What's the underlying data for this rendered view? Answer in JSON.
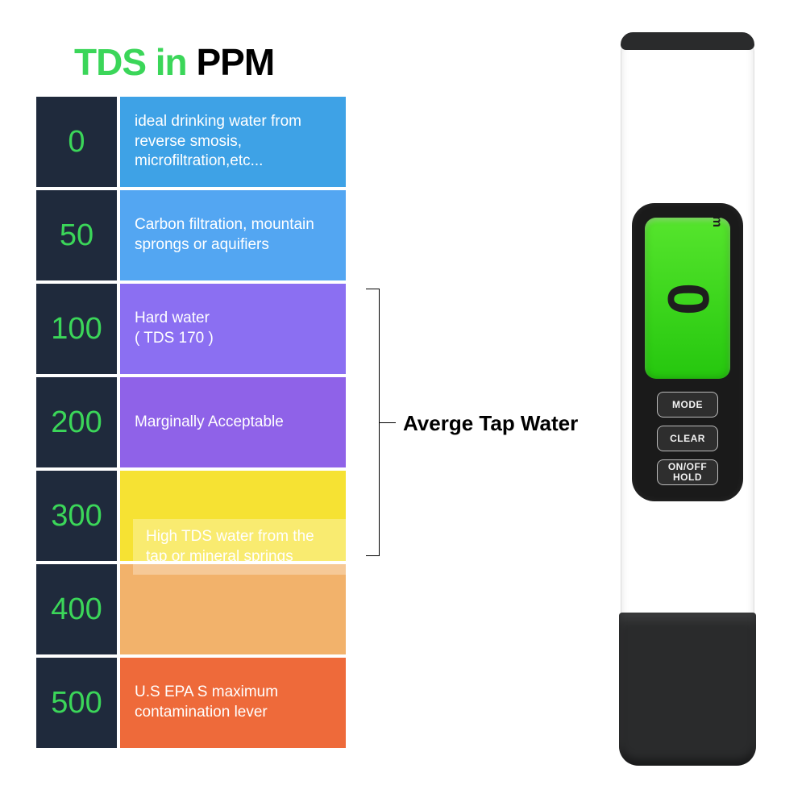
{
  "title": {
    "green": "TDS in",
    "black": "PPM"
  },
  "rows": [
    {
      "value": "0",
      "desc": "ideal drinking water from reverse smosis, microfiltration,etc...",
      "leftBg": "#1f2a3c",
      "rightBg": "#3ea2e6"
    },
    {
      "value": "50",
      "desc": "Carbon filtration, mountain sprongs or aquifiers",
      "leftBg": "#1f2a3c",
      "rightBg": "#53a6f2"
    },
    {
      "value": "100",
      "desc": "Hard water\n( TDS 170 )",
      "leftBg": "#1f2a3c",
      "rightBg": "#8b6ff2"
    },
    {
      "value": "200",
      "desc": "Marginally Acceptable",
      "leftBg": "#1f2a3c",
      "rightBg": "#8f62e8"
    },
    {
      "value": "300",
      "desc": "",
      "leftBg": "#1f2a3c",
      "rightBg": "#f6e233"
    },
    {
      "value": "400",
      "desc": "",
      "leftBg": "#1f2a3c",
      "rightBg": "#f2b26b"
    },
    {
      "value": "500",
      "desc": "U.S EPA S maximum contamination lever",
      "leftBg": "#1f2a3c",
      "rightBg": "#ee6a3a"
    }
  ],
  "overlapLabel": "High TDS water from the tap or mineral springs",
  "bracketLabel": "Averge Tap Water",
  "device": {
    "reading": "0",
    "unit": "ppm",
    "buttons": [
      "MODE",
      "CLEAR",
      "ON/OFF\nHOLD"
    ]
  },
  "colors": {
    "accentGreen": "#3bd659",
    "screenTop": "#56e52d",
    "screenBottom": "#25c70e",
    "deviceDark": "#2a2b2c"
  }
}
